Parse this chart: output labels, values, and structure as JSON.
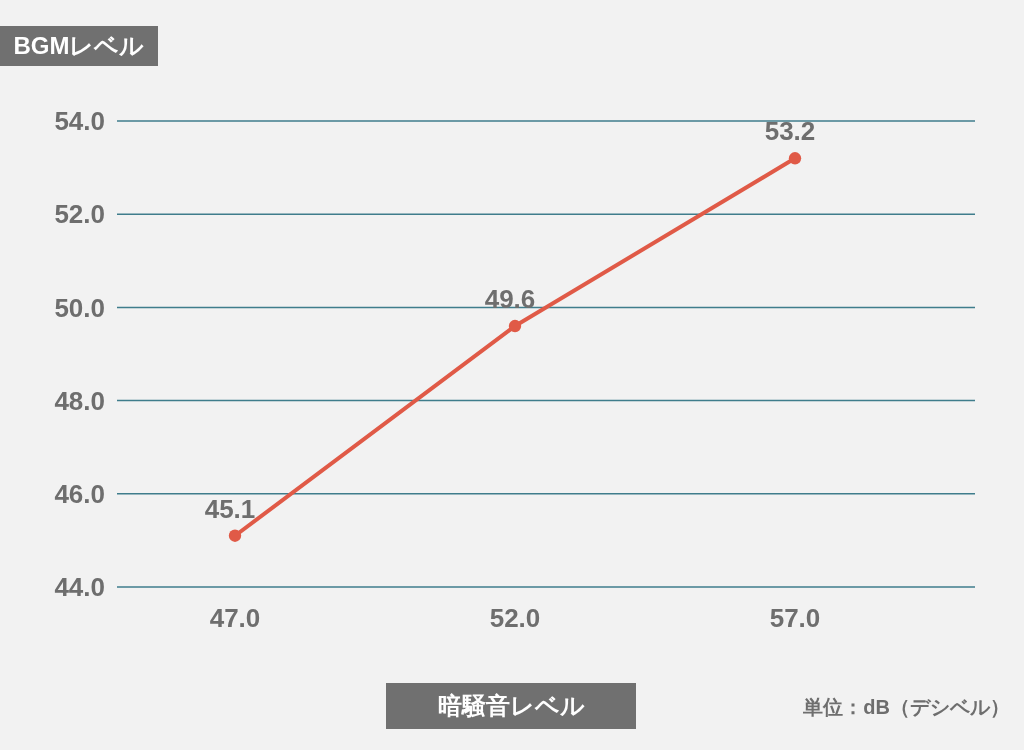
{
  "chart_data": {
    "type": "line",
    "ylabel": "BGMレベル",
    "xlabel": "暗騒音レベル",
    "annotations": [
      "単位：dB（デシベル）"
    ],
    "categories": [
      "47.0",
      "52.0",
      "57.0"
    ],
    "series": [
      {
        "color": "#e05a47",
        "values": [
          45.1,
          49.6,
          53.2
        ]
      }
    ],
    "ylim": [
      44,
      54
    ],
    "yticks": [
      {
        "value": 44,
        "label": "44.0"
      },
      {
        "value": 46,
        "label": "46.0"
      },
      {
        "value": 48,
        "label": "48.0"
      },
      {
        "value": 50,
        "label": "50.0"
      },
      {
        "value": 52,
        "label": "52.0"
      },
      {
        "value": 54,
        "label": "54.0"
      }
    ],
    "grid": "y",
    "marker": "circle",
    "line_style": "solid",
    "data_labels": true
  }
}
